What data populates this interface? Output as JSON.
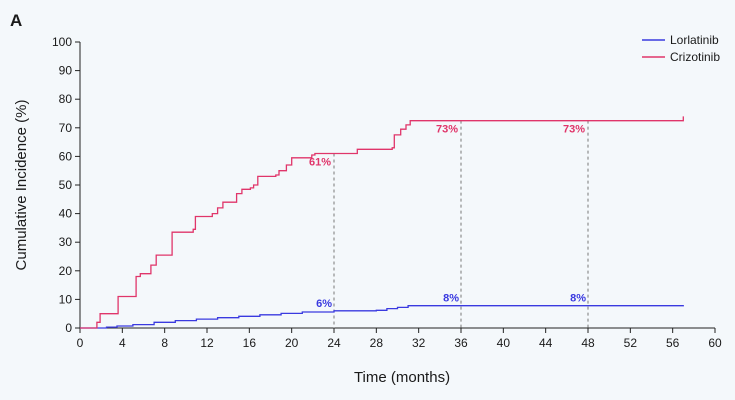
{
  "chart_data": {
    "type": "line",
    "panel_label": "A",
    "xlabel": "Time (months)",
    "ylabel": "Cumulative Incidence (%)",
    "xlim": [
      0,
      60
    ],
    "ylim": [
      0,
      100
    ],
    "xticks": [
      0,
      4,
      8,
      12,
      16,
      20,
      24,
      28,
      32,
      36,
      40,
      44,
      48,
      52,
      56,
      60
    ],
    "yticks": [
      0,
      10,
      20,
      30,
      40,
      50,
      60,
      70,
      80,
      90,
      100
    ],
    "grid": false,
    "legend_position": "top-right",
    "series": [
      {
        "name": "Lorlatinib",
        "color": "#3a3ae0",
        "step": true,
        "points": [
          [
            0,
            0
          ],
          [
            1.5,
            0
          ],
          [
            2.5,
            0.3
          ],
          [
            3.5,
            0.7
          ],
          [
            5,
            1.2
          ],
          [
            7,
            2
          ],
          [
            9,
            2.6
          ],
          [
            11,
            3.1
          ],
          [
            13,
            3.6
          ],
          [
            15,
            4.1
          ],
          [
            17,
            4.6
          ],
          [
            19,
            5.1
          ],
          [
            21,
            5.6
          ],
          [
            24,
            6
          ],
          [
            28,
            6.2
          ],
          [
            29,
            6.8
          ],
          [
            30,
            7.2
          ],
          [
            31,
            7.8
          ],
          [
            57,
            7.8
          ],
          [
            57,
            8
          ]
        ]
      },
      {
        "name": "Crizotinib",
        "color": "#e0356a",
        "step": true,
        "points": [
          [
            0,
            0
          ],
          [
            1.2,
            0
          ],
          [
            1.6,
            2
          ],
          [
            1.9,
            5
          ],
          [
            3.6,
            11
          ],
          [
            5.3,
            18
          ],
          [
            5.7,
            19
          ],
          [
            6.7,
            22
          ],
          [
            7.2,
            25.5
          ],
          [
            8.7,
            33.5
          ],
          [
            10.7,
            34.5
          ],
          [
            10.9,
            39
          ],
          [
            12.5,
            40
          ],
          [
            13,
            42
          ],
          [
            13.5,
            44
          ],
          [
            14.8,
            47
          ],
          [
            15.3,
            48.5
          ],
          [
            16.1,
            49
          ],
          [
            16.4,
            50
          ],
          [
            16.8,
            53
          ],
          [
            18.5,
            53.5
          ],
          [
            18.8,
            55
          ],
          [
            19.5,
            57
          ],
          [
            20,
            59.5
          ],
          [
            21.9,
            60.5
          ],
          [
            22.2,
            61
          ],
          [
            26.2,
            62.5
          ],
          [
            29.5,
            63
          ],
          [
            29.7,
            67.5
          ],
          [
            30.3,
            69.5
          ],
          [
            30.8,
            71
          ],
          [
            31.2,
            72.5
          ],
          [
            56.9,
            72.5
          ],
          [
            57,
            74
          ]
        ]
      }
    ],
    "annotations": [
      {
        "text": "61%",
        "x": 24,
        "y": 61,
        "series": "Crizotinib"
      },
      {
        "text": "73%",
        "x": 36,
        "y": 72.5,
        "series": "Crizotinib"
      },
      {
        "text": "73%",
        "x": 48,
        "y": 72.5,
        "series": "Crizotinib"
      },
      {
        "text": "6%",
        "x": 24,
        "y": 6,
        "series": "Lorlatinib"
      },
      {
        "text": "8%",
        "x": 36,
        "y": 7.8,
        "series": "Lorlatinib"
      },
      {
        "text": "8%",
        "x": 48,
        "y": 7.8,
        "series": "Lorlatinib"
      }
    ]
  }
}
